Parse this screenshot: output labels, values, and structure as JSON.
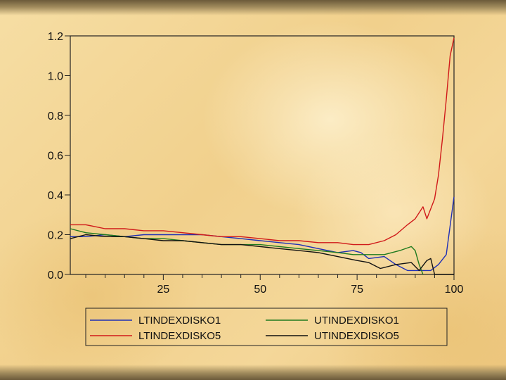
{
  "chart_data": {
    "type": "line",
    "title": "",
    "xlabel": "",
    "ylabel": "",
    "xlim": [
      1,
      100
    ],
    "ylim": [
      0.0,
      1.2
    ],
    "x_tick_labels": [
      "25",
      "50",
      "75",
      "100"
    ],
    "y_tick_labels": [
      "0.0",
      "0.2",
      "0.4",
      "0.6",
      "0.8",
      "1.0",
      "1.2"
    ],
    "legend_position": "bottom",
    "series": [
      {
        "name": "LTINDEXDISKO1",
        "color": "#1f2fb5",
        "points": [
          [
            1,
            0.19
          ],
          [
            5,
            0.19
          ],
          [
            10,
            0.2
          ],
          [
            15,
            0.19
          ],
          [
            20,
            0.2
          ],
          [
            25,
            0.2
          ],
          [
            30,
            0.2
          ],
          [
            35,
            0.2
          ],
          [
            40,
            0.19
          ],
          [
            45,
            0.18
          ],
          [
            50,
            0.17
          ],
          [
            55,
            0.16
          ],
          [
            60,
            0.15
          ],
          [
            65,
            0.13
          ],
          [
            70,
            0.11
          ],
          [
            74,
            0.12
          ],
          [
            76,
            0.11
          ],
          [
            78,
            0.08
          ],
          [
            82,
            0.09
          ],
          [
            85,
            0.05
          ],
          [
            88,
            0.02
          ],
          [
            92,
            0.02
          ],
          [
            94,
            0.02
          ],
          [
            96,
            0.05
          ],
          [
            98,
            0.1
          ],
          [
            100,
            0.39
          ]
        ]
      },
      {
        "name": "LTINDEXDISKO5",
        "color": "#d01a1a",
        "points": [
          [
            1,
            0.25
          ],
          [
            5,
            0.25
          ],
          [
            10,
            0.23
          ],
          [
            15,
            0.23
          ],
          [
            20,
            0.22
          ],
          [
            25,
            0.22
          ],
          [
            30,
            0.21
          ],
          [
            35,
            0.2
          ],
          [
            40,
            0.19
          ],
          [
            45,
            0.19
          ],
          [
            50,
            0.18
          ],
          [
            55,
            0.17
          ],
          [
            60,
            0.17
          ],
          [
            65,
            0.16
          ],
          [
            70,
            0.16
          ],
          [
            74,
            0.15
          ],
          [
            78,
            0.15
          ],
          [
            82,
            0.17
          ],
          [
            85,
            0.2
          ],
          [
            88,
            0.25
          ],
          [
            90,
            0.28
          ],
          [
            92,
            0.34
          ],
          [
            93,
            0.28
          ],
          [
            95,
            0.38
          ],
          [
            96,
            0.5
          ],
          [
            97,
            0.68
          ],
          [
            98,
            0.88
          ],
          [
            99,
            1.1
          ],
          [
            100,
            1.19
          ]
        ]
      },
      {
        "name": "UTINDEXDISKO1",
        "color": "#1e7a1e",
        "points": [
          [
            1,
            0.23
          ],
          [
            5,
            0.21
          ],
          [
            10,
            0.2
          ],
          [
            15,
            0.19
          ],
          [
            20,
            0.18
          ],
          [
            25,
            0.18
          ],
          [
            30,
            0.17
          ],
          [
            35,
            0.16
          ],
          [
            40,
            0.15
          ],
          [
            45,
            0.15
          ],
          [
            50,
            0.15
          ],
          [
            55,
            0.14
          ],
          [
            60,
            0.13
          ],
          [
            65,
            0.12
          ],
          [
            70,
            0.11
          ],
          [
            74,
            0.1
          ],
          [
            78,
            0.1
          ],
          [
            82,
            0.1
          ],
          [
            86,
            0.12
          ],
          [
            89,
            0.14
          ],
          [
            90,
            0.12
          ],
          [
            91,
            0.05
          ],
          [
            92,
            0.0
          ]
        ]
      },
      {
        "name": "UTINDEXDISKO5",
        "color": "#111111",
        "points": [
          [
            1,
            0.18
          ],
          [
            5,
            0.2
          ],
          [
            10,
            0.19
          ],
          [
            15,
            0.19
          ],
          [
            20,
            0.18
          ],
          [
            25,
            0.17
          ],
          [
            30,
            0.17
          ],
          [
            35,
            0.16
          ],
          [
            40,
            0.15
          ],
          [
            45,
            0.15
          ],
          [
            50,
            0.14
          ],
          [
            55,
            0.13
          ],
          [
            60,
            0.12
          ],
          [
            65,
            0.11
          ],
          [
            70,
            0.09
          ],
          [
            75,
            0.07
          ],
          [
            78,
            0.06
          ],
          [
            81,
            0.03
          ],
          [
            85,
            0.05
          ],
          [
            89,
            0.06
          ],
          [
            91,
            0.02
          ],
          [
            93,
            0.07
          ],
          [
            94,
            0.08
          ],
          [
            95,
            0.0
          ],
          [
            100,
            0.0
          ]
        ]
      }
    ]
  }
}
